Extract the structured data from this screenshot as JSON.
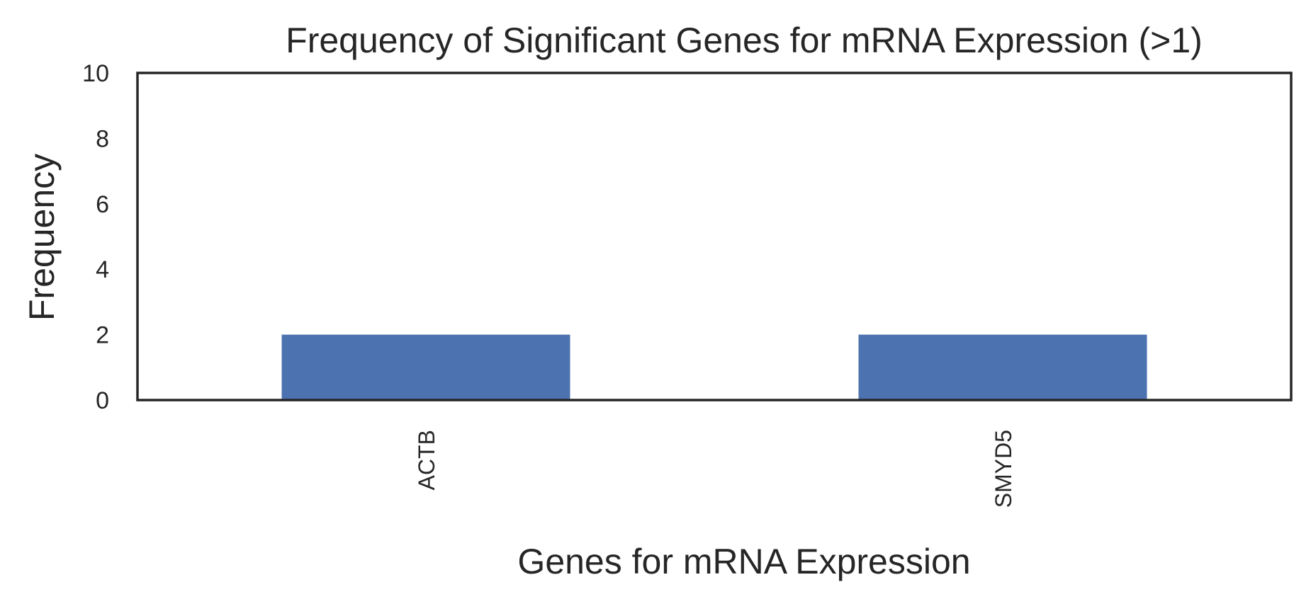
{
  "chart_data": {
    "type": "bar",
    "title": "Frequency of Significant Genes for mRNA Expression (>1)",
    "xlabel": "Genes for mRNA Expression",
    "ylabel": "Frequency",
    "categories": [
      "ACTB",
      "SMYD5"
    ],
    "values": [
      2,
      2
    ],
    "ylim": [
      0,
      10
    ],
    "yticks": [
      "0",
      "2",
      "4",
      "6",
      "8",
      "10"
    ],
    "grid": false,
    "bar_color": "#4c72b0",
    "axis_color": "#262626"
  }
}
